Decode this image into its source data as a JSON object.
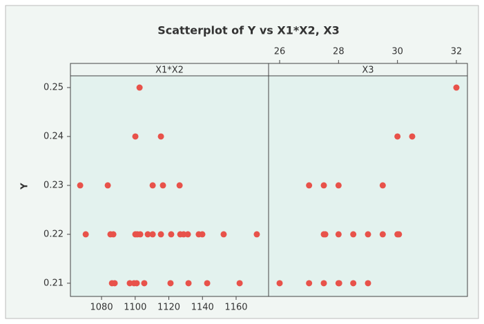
{
  "chart_data": {
    "type": "scatter",
    "title": "Scatterplot of Y vs X1*X2, X3",
    "y_label": "Y",
    "color": "#e8524a",
    "ylim": [
      0.2073,
      0.2524
    ],
    "yticks": [
      0.21,
      0.22,
      0.23,
      0.24,
      0.25
    ],
    "panels": [
      {
        "name": "X1*X2",
        "xaxis": "bottom",
        "xlim": [
          1061.5,
          1179.3
        ],
        "xticks": [
          1080,
          1100,
          1120,
          1140,
          1160
        ],
        "x": [
          1102.6,
          1100.1,
          1115.3,
          1067.3,
          1083.7,
          1110.4,
          1116.5,
          1126.4,
          1070.6,
          1085.3,
          1087.0,
          1100.1,
          1101.3,
          1103.0,
          1107.5,
          1110.4,
          1115.3,
          1121.4,
          1126.8,
          1128.8,
          1131.3,
          1137.8,
          1139.9,
          1152.6,
          1172.3,
          1086.2,
          1087.8,
          1096.8,
          1099.3,
          1100.9,
          1105.4,
          1121.0,
          1131.7,
          1142.8,
          1162.1
        ],
        "y": [
          0.25,
          0.24,
          0.24,
          0.23,
          0.23,
          0.23,
          0.23,
          0.23,
          0.22,
          0.22,
          0.22,
          0.22,
          0.22,
          0.22,
          0.22,
          0.22,
          0.22,
          0.22,
          0.22,
          0.22,
          0.22,
          0.22,
          0.22,
          0.22,
          0.22,
          0.21,
          0.21,
          0.21,
          0.21,
          0.21,
          0.21,
          0.21,
          0.21,
          0.21,
          0.21
        ]
      },
      {
        "name": "X3",
        "xaxis": "top",
        "xlim": [
          25.625,
          32.375
        ],
        "xticks": [
          26,
          28,
          30,
          32
        ],
        "x": [
          32,
          30,
          30.5,
          27,
          27.5,
          28,
          29.5,
          27.5,
          27.55,
          28,
          28.5,
          29,
          29.5,
          30,
          30.05,
          26,
          27,
          27.5,
          28,
          28.02,
          28.5,
          29
        ],
        "y": [
          0.25,
          0.24,
          0.24,
          0.23,
          0.23,
          0.23,
          0.23,
          0.22,
          0.22,
          0.22,
          0.22,
          0.22,
          0.22,
          0.22,
          0.22,
          0.21,
          0.21,
          0.21,
          0.21,
          0.21,
          0.21,
          0.21
        ]
      }
    ]
  }
}
